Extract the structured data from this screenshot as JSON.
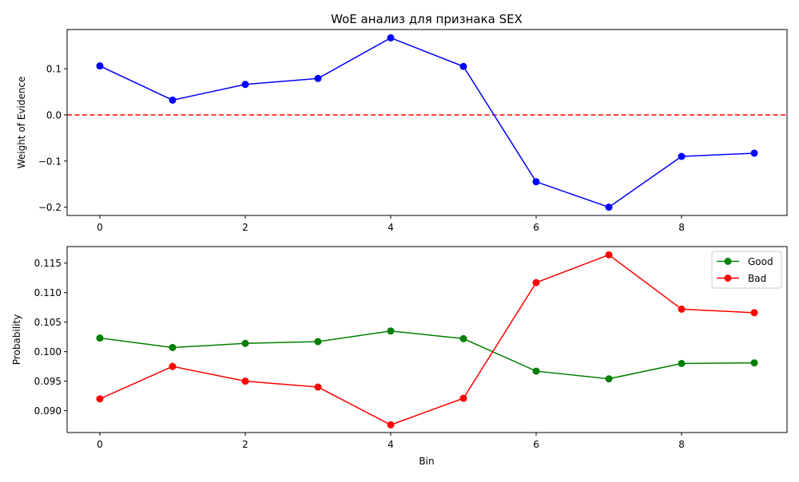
{
  "chart_data": [
    {
      "type": "line",
      "title": "WoE анализ для признака SEX",
      "xlabel": "",
      "ylabel": "Weight of Evidence",
      "x": [
        0,
        1,
        2,
        3,
        4,
        5,
        6,
        7,
        8,
        9
      ],
      "xlim": [
        -0.45,
        9.45
      ],
      "ylim": [
        -0.218,
        0.185
      ],
      "xticks": [
        0,
        2,
        4,
        6,
        8
      ],
      "yticks": [
        -0.2,
        -0.1,
        0.0,
        0.1
      ],
      "ytick_labels": [
        "−0.2",
        "−0.1",
        "0.0",
        "0.1"
      ],
      "grid": false,
      "series": [
        {
          "name": "",
          "color": "#0000ff",
          "marker": "circle",
          "values": [
            0.106,
            0.032,
            0.066,
            0.079,
            0.167,
            0.105,
            -0.145,
            -0.2,
            -0.09,
            -0.083
          ]
        }
      ],
      "reference_line": {
        "y": 0.0,
        "color": "#ff0000",
        "style": "dashed"
      }
    },
    {
      "type": "line",
      "title": "",
      "xlabel": "Bin",
      "ylabel": "Probability",
      "x": [
        0,
        1,
        2,
        3,
        4,
        5,
        6,
        7,
        8,
        9
      ],
      "xlim": [
        -0.45,
        9.45
      ],
      "ylim": [
        0.0863,
        0.1178
      ],
      "xticks": [
        0,
        2,
        4,
        6,
        8
      ],
      "yticks": [
        0.09,
        0.095,
        0.1,
        0.105,
        0.11,
        0.115
      ],
      "ytick_labels": [
        "0.090",
        "0.095",
        "0.100",
        "0.105",
        "0.110",
        "0.115"
      ],
      "grid": false,
      "legend": "top-right",
      "series": [
        {
          "name": "Good",
          "color": "#008000",
          "marker": "circle",
          "values": [
            0.1023,
            0.1007,
            0.1014,
            0.1017,
            0.1035,
            0.1022,
            0.0967,
            0.0954,
            0.098,
            0.0981
          ]
        },
        {
          "name": "Bad",
          "color": "#ff0000",
          "marker": "circle",
          "values": [
            0.092,
            0.0975,
            0.095,
            0.094,
            0.0876,
            0.0921,
            0.1117,
            0.1164,
            0.1072,
            0.1066
          ]
        }
      ]
    }
  ]
}
